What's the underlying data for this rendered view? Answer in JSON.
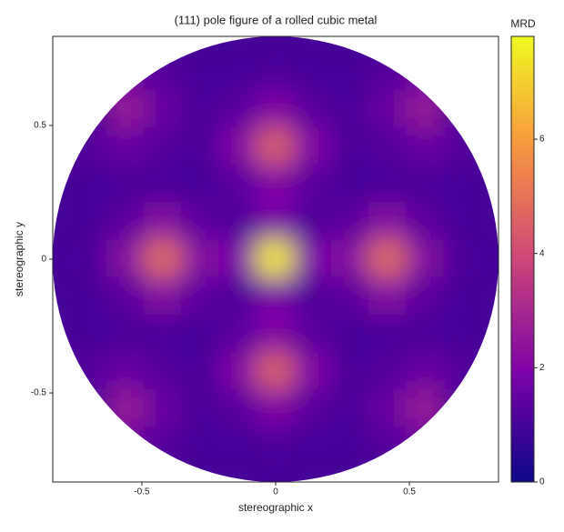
{
  "chart_data": {
    "type": "heatmap",
    "title": "(111) pole figure of a rolled cubic metal",
    "x_label": "stereographic x",
    "y_label": "stereographic y",
    "colorbar_label": "MRD",
    "colormap": "plasma",
    "x": [
      -0.84,
      -0.7,
      -0.56,
      -0.42,
      -0.28,
      -0.14,
      0,
      0.14,
      0.28,
      0.42,
      0.56,
      0.7,
      0.84
    ],
    "y": [
      0.84,
      0.7,
      0.56,
      0.42,
      0.28,
      0.14,
      0,
      -0.14,
      -0.28,
      -0.42,
      -0.56,
      -0.7,
      -0.84
    ],
    "z": [
      [
        null,
        null,
        null,
        null,
        null,
        null,
        1.0,
        null,
        null,
        null,
        null,
        null,
        null
      ],
      [
        null,
        1.22,
        1.6,
        1.22,
        1.0,
        1.0,
        1.03,
        1.0,
        1.0,
        1.22,
        1.6,
        1.22,
        null
      ],
      [
        null,
        null,
        2.6,
        1.6,
        1.03,
        1.31,
        2.05,
        1.31,
        1.03,
        1.6,
        2.6,
        null,
        null
      ],
      [
        null,
        1.22,
        1.6,
        1.22,
        1.03,
        2.05,
        4.5,
        2.05,
        1.03,
        1.22,
        1.6,
        1.22,
        null
      ],
      [
        null,
        1.0,
        1.03,
        1.03,
        1.0,
        1.31,
        2.05,
        1.31,
        1.0,
        1.03,
        1.03,
        1.0,
        null
      ],
      [
        null,
        1.0,
        1.34,
        2.14,
        1.34,
        1.12,
        1.91,
        1.12,
        1.34,
        2.14,
        1.34,
        1.0,
        null
      ],
      [
        1.0,
        1.03,
        2.14,
        4.8,
        2.14,
        1.91,
        7.5,
        1.91,
        2.14,
        4.8,
        2.14,
        1.03,
        1.0
      ],
      [
        null,
        1.0,
        1.34,
        2.14,
        1.34,
        1.12,
        1.91,
        1.12,
        1.34,
        2.14,
        1.34,
        1.0,
        null
      ],
      [
        null,
        1.0,
        1.03,
        1.03,
        1.0,
        1.31,
        2.05,
        1.31,
        1.0,
        1.03,
        1.03,
        1.0,
        null
      ],
      [
        null,
        1.22,
        1.6,
        1.22,
        1.03,
        2.05,
        4.5,
        2.05,
        1.03,
        1.22,
        1.6,
        1.22,
        null
      ],
      [
        null,
        null,
        2.6,
        1.6,
        1.03,
        1.31,
        2.05,
        1.31,
        1.03,
        1.6,
        2.6,
        null,
        null
      ],
      [
        null,
        1.22,
        1.6,
        1.22,
        1.0,
        1.0,
        1.03,
        1.0,
        1.0,
        1.22,
        1.6,
        1.22,
        null
      ],
      [
        null,
        null,
        null,
        null,
        null,
        null,
        1.0,
        null,
        null,
        null,
        null,
        null,
        null
      ]
    ],
    "xlim": [
      -0.833,
      0.833
    ],
    "ylim": [
      -0.833,
      0.833
    ],
    "xticks": [
      -0.5,
      0,
      0.5
    ],
    "yticks": [
      -0.5,
      0,
      0.5
    ],
    "zlim": [
      0,
      7.8
    ],
    "zticks": [
      0,
      2,
      4,
      6
    ]
  }
}
